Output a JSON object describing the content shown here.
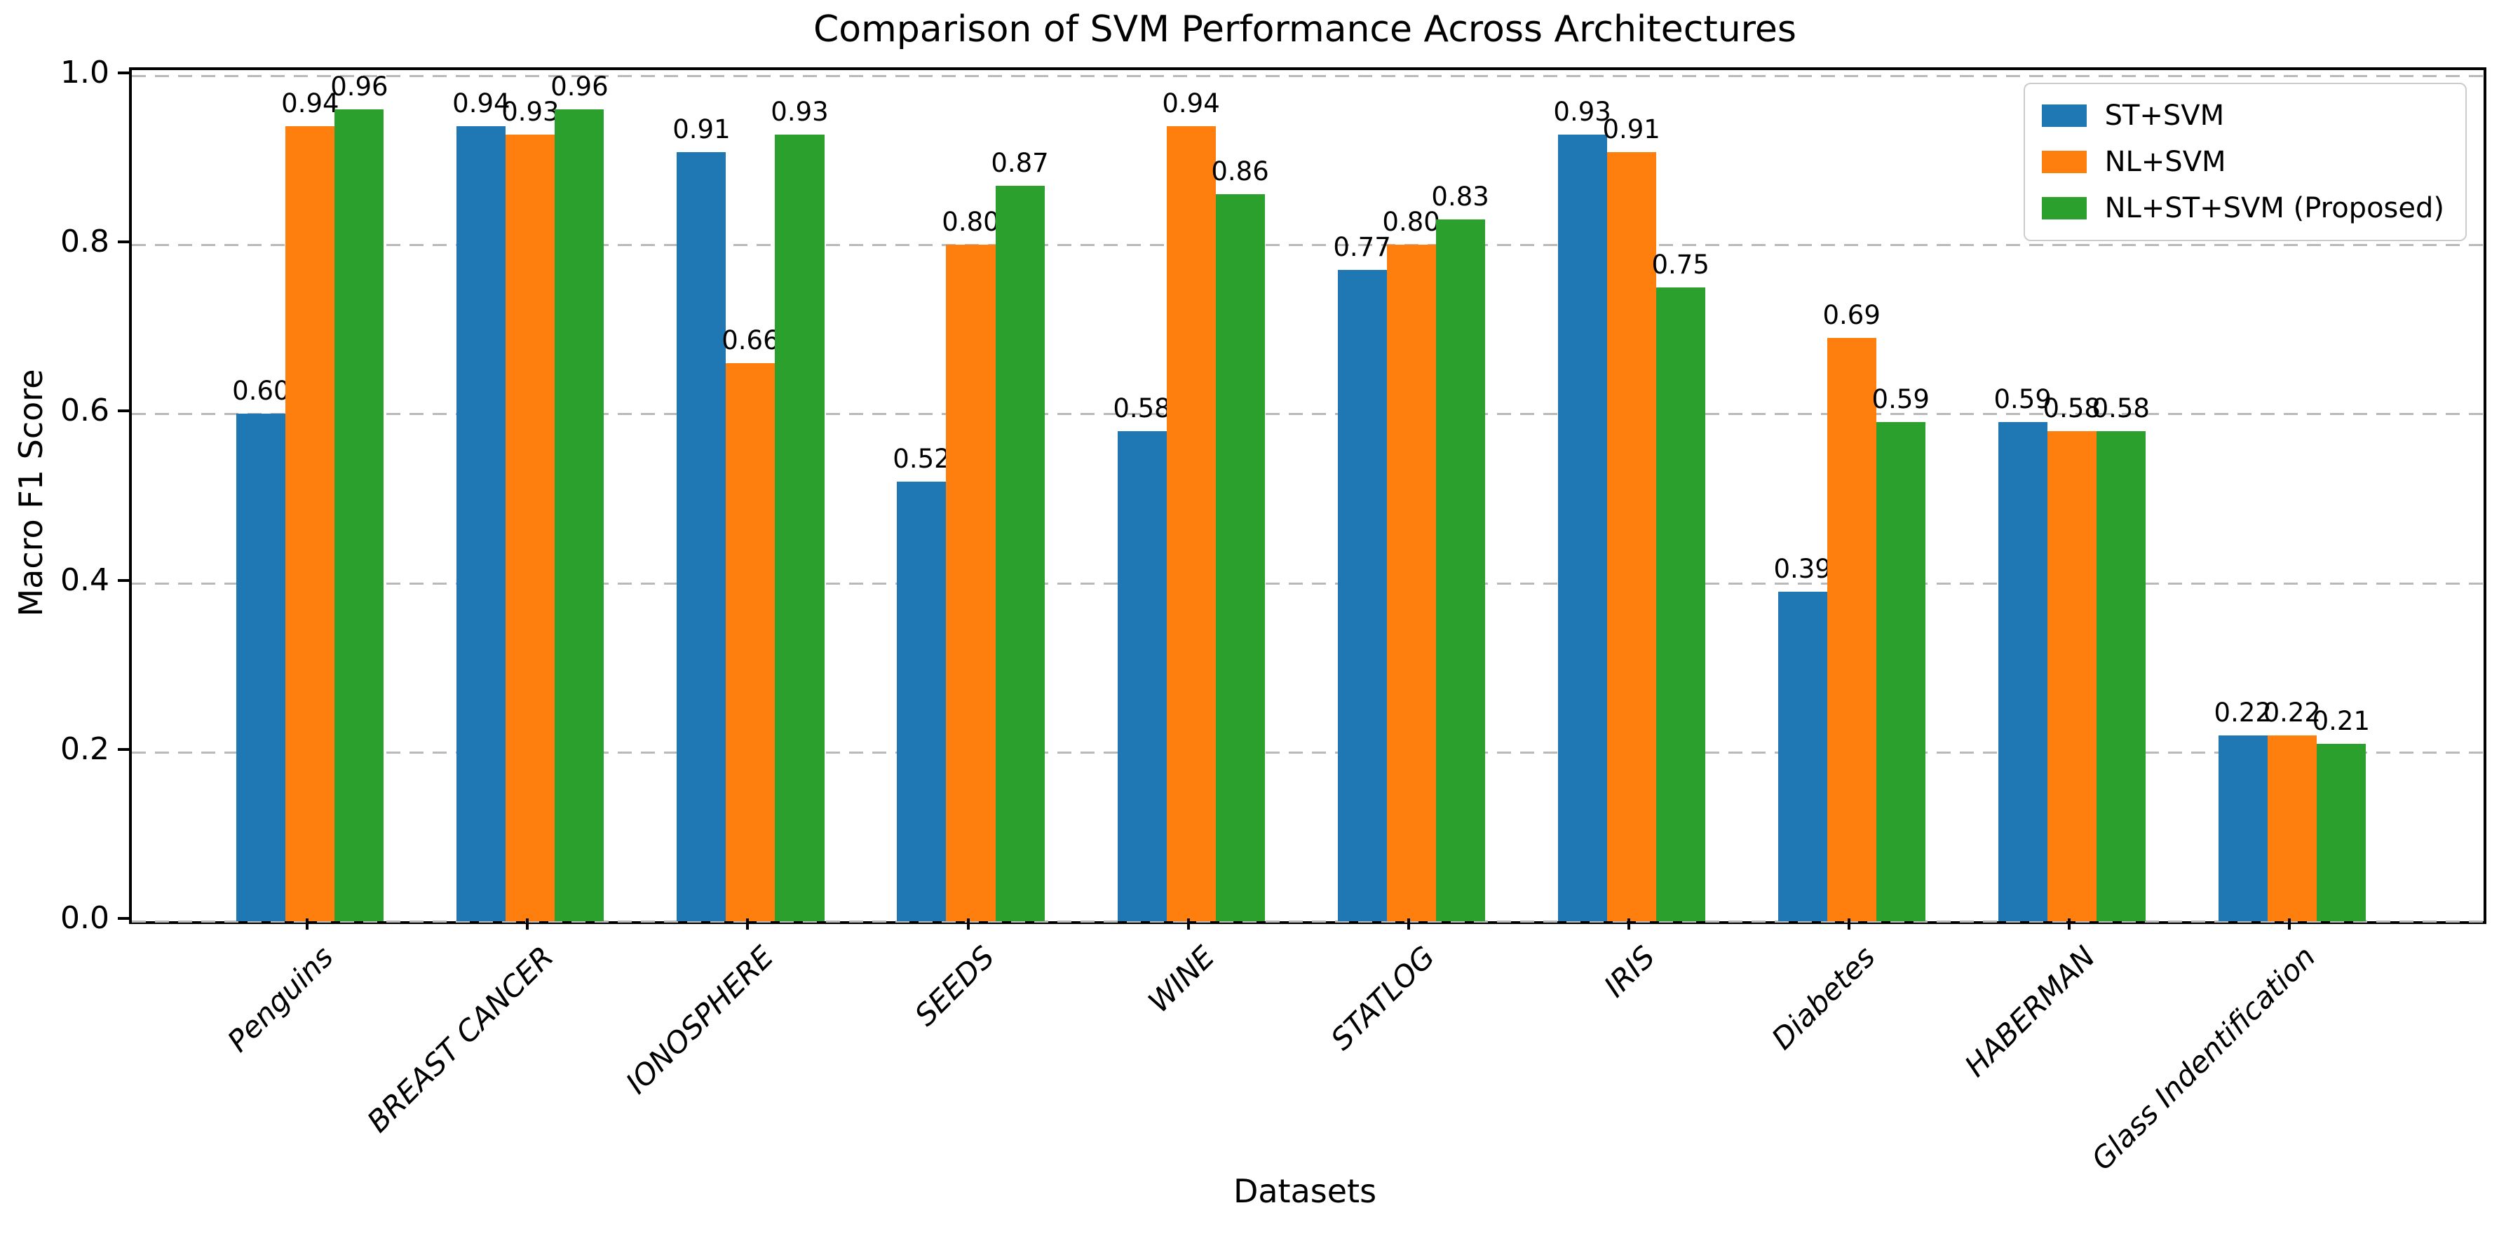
{
  "chart_data": {
    "type": "bar",
    "title": "Comparison of SVM Performance Across Architectures",
    "xlabel": "Datasets",
    "ylabel": "Macro F1 Score",
    "categories": [
      "Penguins",
      "BREAST CANCER",
      "IONOSPHERE",
      "SEEDS",
      "WINE",
      "STATLOG",
      "IRIS",
      "Diabetes",
      "HABERMAN",
      "Glass Indentification"
    ],
    "series": [
      {
        "name": "ST+SVM",
        "color": "#1f77b4",
        "values": [
          0.6,
          0.94,
          0.91,
          0.52,
          0.58,
          0.77,
          0.93,
          0.39,
          0.59,
          0.22
        ]
      },
      {
        "name": "NL+SVM",
        "color": "#ff7f0e",
        "values": [
          0.94,
          0.93,
          0.66,
          0.8,
          0.94,
          0.8,
          0.91,
          0.69,
          0.58,
          0.22
        ]
      },
      {
        "name": "NL+ST+SVM (Proposed)",
        "color": "#2ca02c",
        "values": [
          0.96,
          0.96,
          0.93,
          0.87,
          0.86,
          0.83,
          0.75,
          0.59,
          0.58,
          0.21
        ]
      }
    ],
    "ylim": [
      0.0,
      1.0
    ],
    "yticks": [
      "0.0",
      "0.2",
      "0.4",
      "0.6",
      "0.8",
      "1.0"
    ],
    "grid": "horizontal dashed gray",
    "legend_position": "upper right",
    "value_label_format": "two decimals above each bar",
    "background_color": "#ffffff",
    "spine_color": "#000000"
  }
}
